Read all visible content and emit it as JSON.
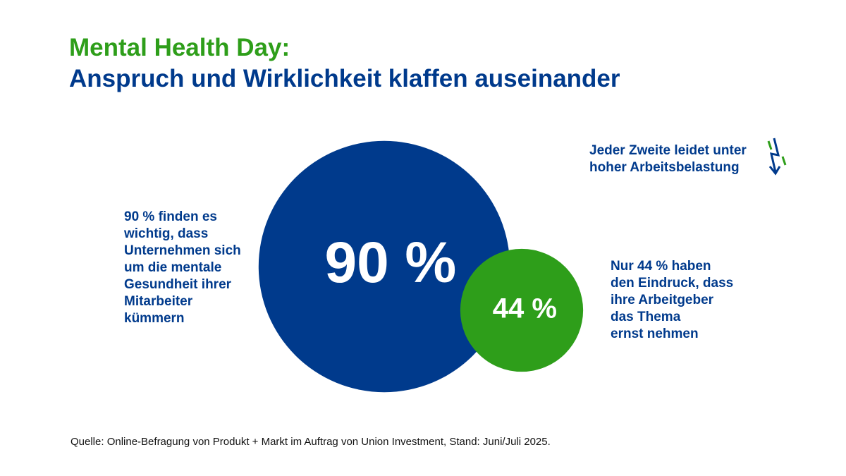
{
  "chart_data": {
    "type": "bubble",
    "title": "Mental Health Day:",
    "subtitle": "Anspruch und Wirklichkeit klaffen auseinander",
    "values": [
      90,
      44
    ],
    "value_labels": [
      "90 %",
      "44 %"
    ],
    "colors": [
      "#003a8c",
      "#2e9e1a"
    ],
    "descriptions": [
      "90 % finden es\nwichtig, dass\nUnternehmen sich\num die mentale\nGesundheit ihrer\nMitarbeiter\nkümmern",
      "Nur 44 % haben\nden Eindruck, dass\nihre Arbeitgeber\ndas Thema\nernst nehmen"
    ],
    "annotation": "Jeder Zweite leidet unter\nhoher Arbeitsbelastung",
    "source": "Quelle: Online-Befragung von Produkt + Markt im Auftrag von Union Investment, Stand: Juni/Juli 2025."
  }
}
